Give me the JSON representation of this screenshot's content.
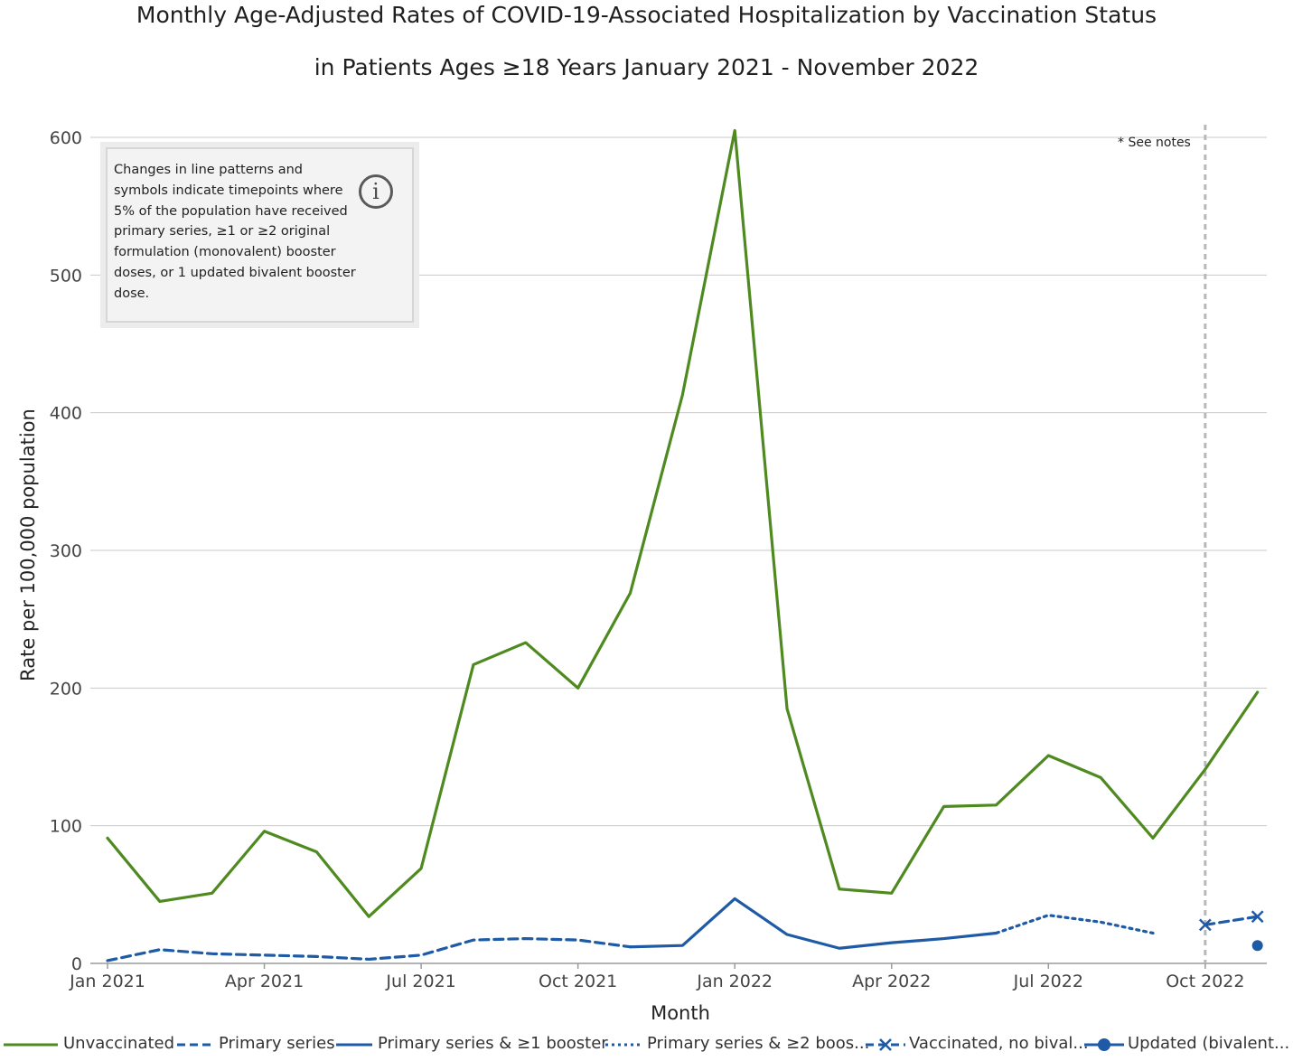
{
  "title_line1": "Monthly Age-Adjusted Rates of COVID-19-Associated Hospitalization by Vaccination Status",
  "title_line2": "in Patients Ages ≥18 Years January 2021 - November 2022",
  "note": {
    "text": "Changes in line patterns and symbols indicate timepoints where 5% of the population have received primary series, ≥1 or ≥2 original formulation (monovalent) booster doses, or 1 updated bivalent booster dose.",
    "icon": "info-icon",
    "icon_glyph": "i"
  },
  "see_notes": "* See notes",
  "legend": [
    {
      "label": "Unvaccinated",
      "color": "#4e8a1f",
      "style": "solid"
    },
    {
      "label": "Primary series",
      "color": "#1f5aa6",
      "style": "dashed"
    },
    {
      "label": "Primary series & ≥1 booster",
      "color": "#1f5aa6",
      "style": "solid"
    },
    {
      "label": "Primary series & ≥2 boos...",
      "color": "#1f5aa6",
      "style": "dotted"
    },
    {
      "label": "Vaccinated, no bival...",
      "color": "#1f5aa6",
      "style": "dashed-x"
    },
    {
      "label": "Updated (bivalent...",
      "color": "#1f5aa6",
      "style": "dot"
    }
  ],
  "chart_data": {
    "type": "line",
    "title": "Monthly Age-Adjusted Rates of COVID-19-Associated Hospitalization by Vaccination Status in Patients Ages ≥18 Years January 2021 - November 2022",
    "xlabel": "Month",
    "ylabel": "Rate per 100,000 population",
    "ylim": [
      0,
      600
    ],
    "yticks": [
      0,
      100,
      200,
      300,
      400,
      500,
      600
    ],
    "xticks": [
      {
        "index": 0,
        "label": "Jan 2021"
      },
      {
        "index": 3,
        "label": "Apr 2021"
      },
      {
        "index": 6,
        "label": "Jul 2021"
      },
      {
        "index": 9,
        "label": "Oct 2021"
      },
      {
        "index": 12,
        "label": "Jan 2022"
      },
      {
        "index": 15,
        "label": "Apr 2022"
      },
      {
        "index": 18,
        "label": "Jul 2022"
      },
      {
        "index": 21,
        "label": "Oct 2022"
      }
    ],
    "categories": [
      "Jan 2021",
      "Feb 2021",
      "Mar 2021",
      "Apr 2021",
      "May 2021",
      "Jun 2021",
      "Jul 2021",
      "Aug 2021",
      "Sep 2021",
      "Oct 2021",
      "Nov 2021",
      "Dec 2021",
      "Jan 2022",
      "Feb 2022",
      "Mar 2022",
      "Apr 2022",
      "May 2022",
      "Jun 2022",
      "Jul 2022",
      "Aug 2022",
      "Sep 2022",
      "Oct 2022",
      "Nov 2022"
    ],
    "reference_line": {
      "index": 21,
      "label": "* See notes"
    },
    "grid": true,
    "series": [
      {
        "name": "Unvaccinated",
        "color": "#4e8a1f",
        "style": "solid",
        "points": [
          [
            0,
            91
          ],
          [
            1,
            45
          ],
          [
            2,
            51
          ],
          [
            3,
            96
          ],
          [
            4,
            81
          ],
          [
            5,
            34
          ],
          [
            6,
            69
          ],
          [
            7,
            217
          ],
          [
            8,
            233
          ],
          [
            9,
            200
          ],
          [
            10,
            269
          ],
          [
            11,
            413
          ],
          [
            12,
            605
          ],
          [
            13,
            185
          ],
          [
            14,
            54
          ],
          [
            15,
            51
          ],
          [
            16,
            114
          ],
          [
            17,
            115
          ],
          [
            18,
            151
          ],
          [
            19,
            135
          ],
          [
            20,
            91
          ],
          [
            21,
            141
          ],
          [
            22,
            197
          ]
        ]
      },
      {
        "name": "Primary series",
        "color": "#1f5aa6",
        "style": "dashed",
        "points": [
          [
            0,
            2
          ],
          [
            1,
            10
          ],
          [
            2,
            7
          ],
          [
            3,
            6
          ],
          [
            4,
            5
          ],
          [
            5,
            3
          ],
          [
            6,
            6
          ],
          [
            7,
            17
          ],
          [
            8,
            18
          ],
          [
            9,
            17
          ],
          [
            10,
            12
          ]
        ]
      },
      {
        "name": "Primary series & ≥1 booster",
        "color": "#1f5aa6",
        "style": "solid",
        "points": [
          [
            10,
            12
          ],
          [
            11,
            13
          ],
          [
            12,
            47
          ],
          [
            13,
            21
          ],
          [
            14,
            11
          ],
          [
            15,
            15
          ],
          [
            16,
            18
          ],
          [
            17,
            22
          ]
        ]
      },
      {
        "name": "Primary series & ≥2 boosters",
        "color": "#1f5aa6",
        "style": "dotted",
        "points": [
          [
            17,
            22
          ],
          [
            18,
            35
          ],
          [
            19,
            30
          ],
          [
            20,
            22
          ]
        ]
      },
      {
        "name": "Vaccinated, no bivalent booster",
        "color": "#1f5aa6",
        "style": "dashed-x",
        "points": [
          [
            21,
            28
          ],
          [
            22,
            34
          ]
        ]
      },
      {
        "name": "Updated (bivalent) booster",
        "color": "#1f5aa6",
        "style": "dot",
        "points": [
          [
            22,
            13
          ]
        ]
      }
    ]
  }
}
